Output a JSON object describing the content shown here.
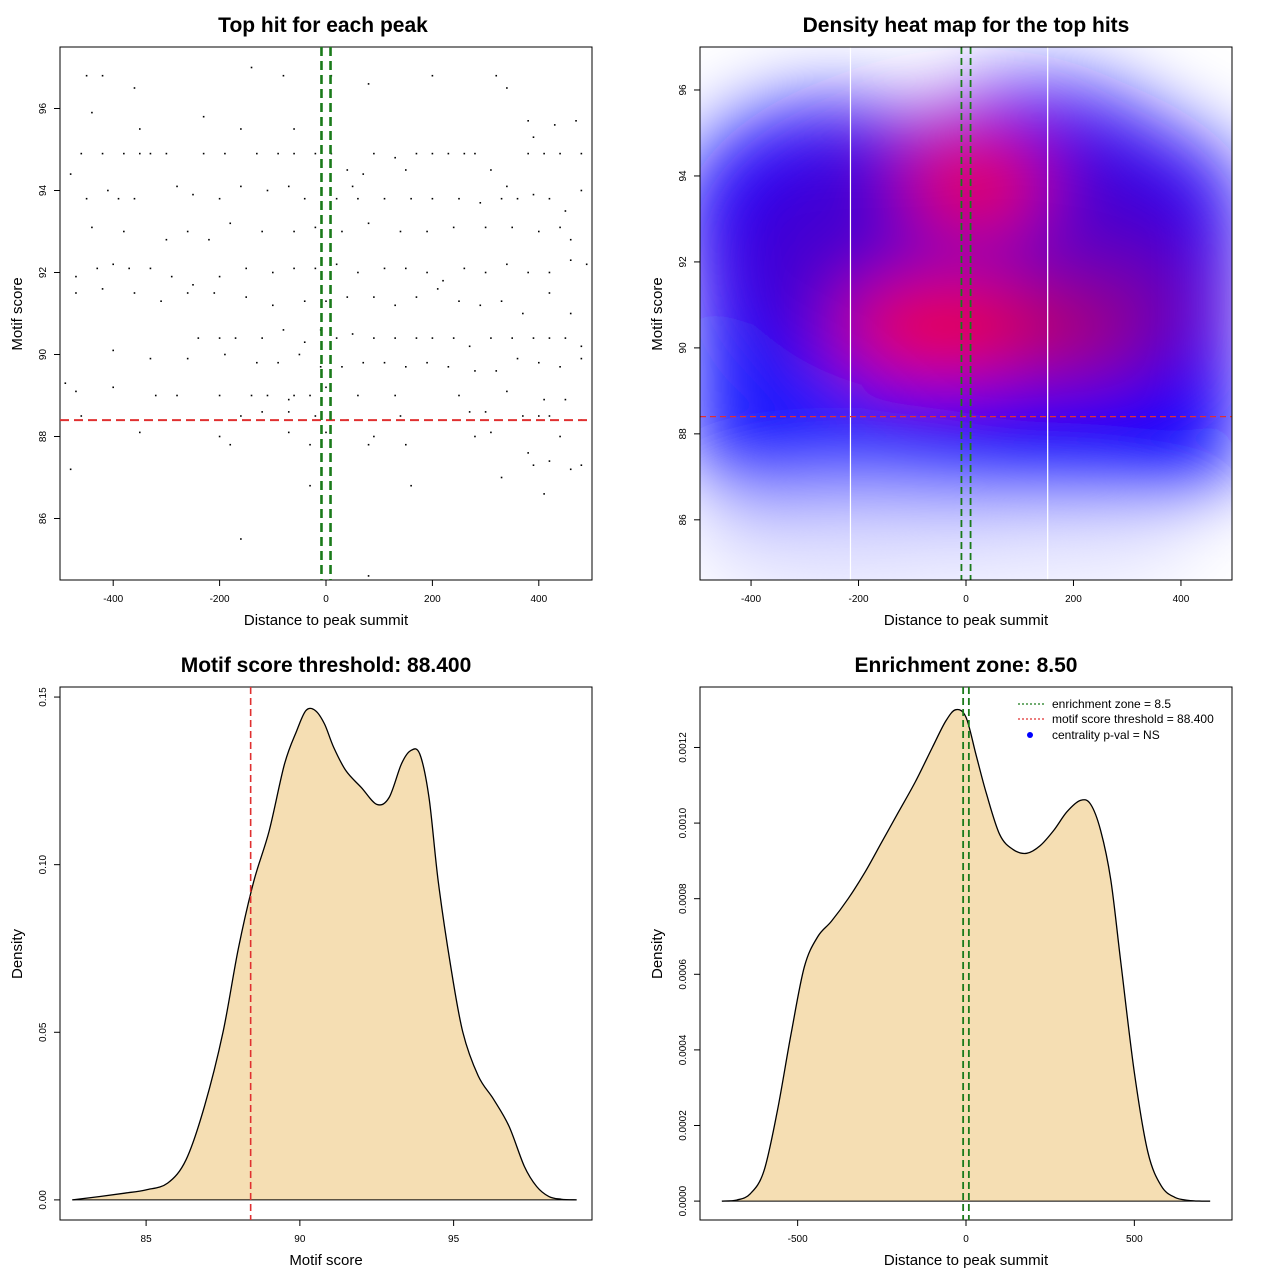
{
  "colors": {
    "threshold_line": "#e03030",
    "zone_line": "#1a7a1a",
    "density_fill": "#f5deb3",
    "heat_low": "#ffffff",
    "heat_mid": "#0000ff",
    "heat_high": "#ff0000",
    "legend_point": "#0000ff"
  },
  "chart_data": [
    {
      "id": "scatter",
      "type": "scatter",
      "title": "Top hit for each peak",
      "xlabel": "Distance to peak summit",
      "ylabel": "Motif score",
      "xlim": [
        -500,
        500
      ],
      "ylim": [
        84.5,
        97.5
      ],
      "x_ticks": [
        -400,
        -200,
        0,
        200,
        400
      ],
      "y_ticks": [
        86,
        88,
        90,
        92,
        94,
        96
      ],
      "hlines": [
        88.4
      ],
      "vlines": [
        -8.5,
        8.5
      ],
      "points": [
        [
          -450,
          96.8
        ],
        [
          -420,
          96.8
        ],
        [
          -360,
          96.5
        ],
        [
          -140,
          97.0
        ],
        [
          -80,
          96.8
        ],
        [
          10,
          96.8
        ],
        [
          80,
          96.6
        ],
        [
          200,
          96.8
        ],
        [
          320,
          96.8
        ],
        [
          340,
          96.5
        ],
        [
          -440,
          95.9
        ],
        [
          -230,
          95.8
        ],
        [
          -350,
          95.5
        ],
        [
          -160,
          95.5
        ],
        [
          -60,
          95.5
        ],
        [
          430,
          95.6
        ],
        [
          470,
          95.7
        ],
        [
          390,
          95.3
        ],
        [
          380,
          95.7
        ],
        [
          -480,
          94.4
        ],
        [
          -460,
          94.9
        ],
        [
          -420,
          94.9
        ],
        [
          -380,
          94.9
        ],
        [
          -350,
          94.9
        ],
        [
          -330,
          94.9
        ],
        [
          -300,
          94.9
        ],
        [
          -230,
          94.9
        ],
        [
          -190,
          94.9
        ],
        [
          -130,
          94.9
        ],
        [
          -90,
          94.9
        ],
        [
          -60,
          94.9
        ],
        [
          -20,
          94.9
        ],
        [
          10,
          94.9
        ],
        [
          40,
          94.5
        ],
        [
          50,
          94.1
        ],
        [
          70,
          94.4
        ],
        [
          90,
          94.9
        ],
        [
          130,
          94.8
        ],
        [
          150,
          94.5
        ],
        [
          170,
          94.9
        ],
        [
          200,
          94.9
        ],
        [
          230,
          94.9
        ],
        [
          260,
          94.9
        ],
        [
          280,
          94.9
        ],
        [
          310,
          94.5
        ],
        [
          340,
          94.1
        ],
        [
          380,
          94.9
        ],
        [
          410,
          94.9
        ],
        [
          440,
          94.9
        ],
        [
          480,
          94.9
        ],
        [
          -450,
          93.8
        ],
        [
          -410,
          94.0
        ],
        [
          -390,
          93.8
        ],
        [
          -360,
          93.8
        ],
        [
          -280,
          94.1
        ],
        [
          -250,
          93.9
        ],
        [
          -200,
          93.8
        ],
        [
          -160,
          94.1
        ],
        [
          -110,
          94.0
        ],
        [
          -70,
          94.1
        ],
        [
          -40,
          93.8
        ],
        [
          20,
          93.8
        ],
        [
          60,
          93.8
        ],
        [
          110,
          93.8
        ],
        [
          160,
          93.8
        ],
        [
          200,
          93.8
        ],
        [
          250,
          93.8
        ],
        [
          290,
          93.7
        ],
        [
          330,
          93.8
        ],
        [
          360,
          93.8
        ],
        [
          390,
          93.9
        ],
        [
          420,
          93.8
        ],
        [
          450,
          93.5
        ],
        [
          480,
          94.0
        ],
        [
          -440,
          93.1
        ],
        [
          -380,
          93.0
        ],
        [
          -300,
          92.8
        ],
        [
          -260,
          93.0
        ],
        [
          -220,
          92.8
        ],
        [
          -180,
          93.2
        ],
        [
          -120,
          93.0
        ],
        [
          -60,
          93.0
        ],
        [
          -20,
          93.1
        ],
        [
          30,
          93.0
        ],
        [
          80,
          93.2
        ],
        [
          140,
          93.0
        ],
        [
          190,
          93.0
        ],
        [
          240,
          93.1
        ],
        [
          300,
          93.1
        ],
        [
          350,
          93.1
        ],
        [
          400,
          93.0
        ],
        [
          440,
          93.1
        ],
        [
          460,
          92.8
        ],
        [
          -470,
          91.9
        ],
        [
          -430,
          92.1
        ],
        [
          -400,
          92.2
        ],
        [
          -370,
          92.1
        ],
        [
          -330,
          92.1
        ],
        [
          -290,
          91.9
        ],
        [
          -250,
          91.7
        ],
        [
          -200,
          91.9
        ],
        [
          -150,
          92.1
        ],
        [
          -100,
          92.0
        ],
        [
          -60,
          92.1
        ],
        [
          -20,
          92.1
        ],
        [
          20,
          92.2
        ],
        [
          60,
          92.0
        ],
        [
          110,
          92.1
        ],
        [
          150,
          92.1
        ],
        [
          190,
          92.0
        ],
        [
          220,
          91.8
        ],
        [
          260,
          92.1
        ],
        [
          300,
          92.0
        ],
        [
          340,
          92.2
        ],
        [
          380,
          92.0
        ],
        [
          420,
          92.0
        ],
        [
          460,
          92.3
        ],
        [
          490,
          92.2
        ],
        [
          -470,
          91.5
        ],
        [
          -420,
          91.6
        ],
        [
          -360,
          91.5
        ],
        [
          -310,
          91.3
        ],
        [
          -260,
          91.5
        ],
        [
          -210,
          91.5
        ],
        [
          -150,
          91.4
        ],
        [
          -100,
          91.2
        ],
        [
          -40,
          91.3
        ],
        [
          0,
          91.3
        ],
        [
          40,
          91.4
        ],
        [
          90,
          91.4
        ],
        [
          130,
          91.2
        ],
        [
          170,
          91.4
        ],
        [
          210,
          91.6
        ],
        [
          250,
          91.3
        ],
        [
          290,
          91.2
        ],
        [
          330,
          91.3
        ],
        [
          370,
          91.0
        ],
        [
          420,
          91.5
        ],
        [
          460,
          91.0
        ],
        [
          -240,
          90.4
        ],
        [
          -200,
          90.4
        ],
        [
          -170,
          90.4
        ],
        [
          -120,
          90.4
        ],
        [
          -80,
          90.6
        ],
        [
          -40,
          90.3
        ],
        [
          -10,
          90.6
        ],
        [
          20,
          90.4
        ],
        [
          50,
          90.5
        ],
        [
          90,
          90.4
        ],
        [
          130,
          90.4
        ],
        [
          170,
          90.4
        ],
        [
          200,
          90.4
        ],
        [
          240,
          90.4
        ],
        [
          270,
          90.2
        ],
        [
          310,
          90.4
        ],
        [
          350,
          90.4
        ],
        [
          390,
          90.4
        ],
        [
          420,
          90.4
        ],
        [
          450,
          90.4
        ],
        [
          480,
          90.2
        ],
        [
          -400,
          90.1
        ],
        [
          -330,
          89.9
        ],
        [
          -260,
          89.9
        ],
        [
          -190,
          90.0
        ],
        [
          -130,
          89.8
        ],
        [
          -90,
          89.8
        ],
        [
          -50,
          90.0
        ],
        [
          -10,
          89.7
        ],
        [
          30,
          89.7
        ],
        [
          70,
          89.8
        ],
        [
          110,
          89.8
        ],
        [
          150,
          89.7
        ],
        [
          190,
          89.8
        ],
        [
          230,
          89.7
        ],
        [
          280,
          89.6
        ],
        [
          320,
          89.6
        ],
        [
          360,
          89.9
        ],
        [
          400,
          89.8
        ],
        [
          440,
          89.7
        ],
        [
          480,
          89.9
        ],
        [
          -490,
          89.3
        ],
        [
          -470,
          89.1
        ],
        [
          -400,
          89.2
        ],
        [
          -320,
          89.0
        ],
        [
          -280,
          89.0
        ],
        [
          -200,
          89.0
        ],
        [
          -140,
          89.0
        ],
        [
          -110,
          89.0
        ],
        [
          -70,
          88.9
        ],
        [
          -60,
          89.0
        ],
        [
          -30,
          89.0
        ],
        [
          0,
          89.2
        ],
        [
          60,
          89.0
        ],
        [
          130,
          89.0
        ],
        [
          250,
          89.0
        ],
        [
          340,
          89.1
        ],
        [
          410,
          88.9
        ],
        [
          450,
          88.9
        ],
        [
          -460,
          88.5
        ],
        [
          -160,
          88.5
        ],
        [
          -120,
          88.6
        ],
        [
          -70,
          88.6
        ],
        [
          -20,
          88.5
        ],
        [
          40,
          88.4
        ],
        [
          140,
          88.5
        ],
        [
          270,
          88.6
        ],
        [
          300,
          88.6
        ],
        [
          370,
          88.5
        ],
        [
          400,
          88.5
        ],
        [
          420,
          88.5
        ],
        [
          480,
          88.4
        ],
        [
          -350,
          88.1
        ],
        [
          -200,
          88.0
        ],
        [
          -70,
          88.1
        ],
        [
          0,
          88.1
        ],
        [
          90,
          88.0
        ],
        [
          280,
          88.0
        ],
        [
          310,
          88.1
        ],
        [
          440,
          88.0
        ],
        [
          -180,
          87.8
        ],
        [
          -30,
          87.8
        ],
        [
          80,
          87.8
        ],
        [
          150,
          87.8
        ],
        [
          380,
          87.6
        ],
        [
          420,
          87.4
        ],
        [
          -480,
          87.2
        ],
        [
          390,
          87.3
        ],
        [
          460,
          87.2
        ],
        [
          480,
          87.3
        ],
        [
          330,
          87.0
        ],
        [
          -30,
          86.8
        ],
        [
          160,
          86.8
        ],
        [
          410,
          86.6
        ],
        [
          -160,
          85.5
        ],
        [
          80,
          84.6
        ]
      ]
    },
    {
      "id": "heatmap",
      "type": "heatmap",
      "title": "Density heat map for the top hits",
      "xlabel": "Distance to peak summit",
      "ylabel": "Motif score",
      "xlim": [
        -495,
        495
      ],
      "ylim": [
        84.6,
        97.0
      ],
      "x_ticks": [
        -400,
        -200,
        0,
        200,
        400
      ],
      "y_ticks": [
        86,
        88,
        90,
        92,
        94,
        96
      ],
      "hlines": [
        88.4
      ],
      "vlines": [
        -8.5,
        8.5
      ],
      "grid_vlines": [
        -215,
        152
      ]
    },
    {
      "id": "score-density",
      "type": "area",
      "title": "Motif score threshold: 88.400",
      "xlabel": "Motif score",
      "ylabel": "Density",
      "xlim": [
        82.2,
        99.5
      ],
      "ylim": [
        -0.006,
        0.153
      ],
      "x_ticks": [
        85,
        90,
        95
      ],
      "y_ticks": [
        0.0,
        0.05,
        0.1,
        0.15
      ],
      "y_tick_labels": [
        "0.00",
        "0.05",
        "0.10",
        "0.15"
      ],
      "vlines": [
        88.4
      ],
      "x": [
        82.6,
        83.5,
        84.3,
        85.0,
        85.7,
        86.3,
        86.9,
        87.5,
        88.0,
        88.5,
        89.0,
        89.5,
        89.9,
        90.2,
        90.5,
        90.8,
        91.1,
        91.5,
        92.0,
        92.5,
        92.9,
        93.3,
        93.6,
        93.9,
        94.2,
        94.5,
        94.9,
        95.3,
        95.8,
        96.3,
        96.8,
        97.3,
        97.7,
        98.1,
        98.5,
        99.0
      ],
      "values": [
        0.0,
        0.001,
        0.002,
        0.003,
        0.005,
        0.012,
        0.028,
        0.05,
        0.075,
        0.095,
        0.11,
        0.13,
        0.14,
        0.146,
        0.146,
        0.142,
        0.135,
        0.128,
        0.123,
        0.118,
        0.12,
        0.13,
        0.134,
        0.133,
        0.12,
        0.095,
        0.07,
        0.05,
        0.037,
        0.03,
        0.022,
        0.01,
        0.004,
        0.001,
        0.0002,
        0.0
      ]
    },
    {
      "id": "distance-density",
      "type": "area",
      "title": "Enrichment zone: 8.50",
      "xlabel": "Distance to peak summit",
      "ylabel": "Density",
      "xlim": [
        -790,
        790
      ],
      "ylim": [
        -5e-05,
        0.00136
      ],
      "x_ticks": [
        -500,
        0,
        500
      ],
      "y_ticks": [
        0.0,
        0.0002,
        0.0004,
        0.0006,
        0.0008,
        0.001,
        0.0012
      ],
      "y_tick_labels": [
        "0.0000",
        "0.0002",
        "0.0004",
        "0.0006",
        "0.0008",
        "0.0010",
        "0.0012"
      ],
      "vlines": [
        -8.5,
        8.5
      ],
      "x": [
        -725,
        -680,
        -640,
        -600,
        -560,
        -520,
        -480,
        -440,
        -400,
        -350,
        -300,
        -250,
        -200,
        -150,
        -100,
        -60,
        -30,
        0,
        30,
        60,
        100,
        140,
        180,
        220,
        260,
        300,
        340,
        370,
        400,
        430,
        460,
        500,
        540,
        580,
        620,
        660,
        700,
        725
      ],
      "values": [
        0.0,
        3e-06,
        2e-05,
        8e-05,
        0.00024,
        0.00044,
        0.00062,
        0.0007,
        0.00074,
        0.0008,
        0.00087,
        0.00095,
        0.00103,
        0.00111,
        0.0012,
        0.00127,
        0.0013,
        0.00128,
        0.00118,
        0.00108,
        0.00097,
        0.00093,
        0.00092,
        0.00094,
        0.00098,
        0.00103,
        0.00106,
        0.00105,
        0.00098,
        0.00085,
        0.00063,
        0.00034,
        0.00013,
        4e-05,
        1e-05,
        2e-06,
        0.0,
        0.0
      ],
      "legend": [
        {
          "label": "enrichment zone = 8.5",
          "kind": "line",
          "color": "#1a7a1a"
        },
        {
          "label": "motif score threshold = 88.400",
          "kind": "line",
          "color": "#e03030"
        },
        {
          "label": "centrality p-val = NS",
          "kind": "point",
          "color": "#0000ff"
        }
      ]
    }
  ]
}
